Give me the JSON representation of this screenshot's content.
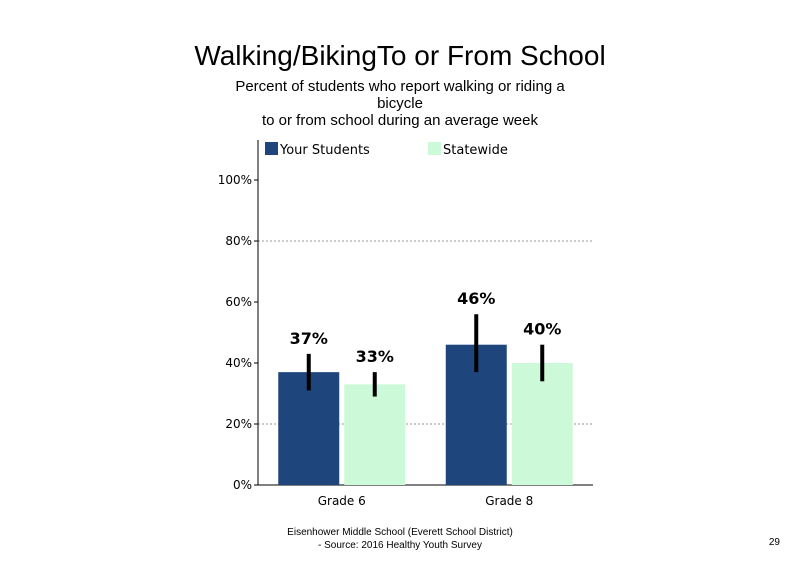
{
  "chart_data": {
    "type": "bar",
    "title": "Walking/BikingTo or From School",
    "subtitle_lines": [
      "Percent of students who report walking or riding a",
      "bicycle",
      "to or from school during an average week"
    ],
    "categories": [
      "Grade 6",
      "Grade 8"
    ],
    "series": [
      {
        "name": "Your Students",
        "color": "#1f467c",
        "values": [
          37,
          46
        ],
        "labels": [
          "37%",
          "46%"
        ],
        "error_low": [
          31,
          37
        ],
        "error_high": [
          43,
          56
        ]
      },
      {
        "name": "Statewide",
        "color": "#ccf9d8",
        "values": [
          33,
          40
        ],
        "labels": [
          "33%",
          "40%"
        ],
        "error_low": [
          29,
          34
        ],
        "error_high": [
          37,
          46
        ]
      }
    ],
    "y_ticks": [
      {
        "value": 0,
        "label": "0%"
      },
      {
        "value": 20,
        "label": "20%"
      },
      {
        "value": 40,
        "label": "40%"
      },
      {
        "value": 60,
        "label": "60%"
      },
      {
        "value": 80,
        "label": "80%"
      },
      {
        "value": 100,
        "label": "100%"
      }
    ],
    "gridlines_at": [
      20,
      80
    ],
    "ylim": [
      0,
      100
    ],
    "legend_position": "top"
  },
  "footer": {
    "line1": "Eisenhower Middle School (Everett School District)",
    "line2": "- Source: 2016 Healthy  Youth Survey"
  },
  "page_number": "29"
}
